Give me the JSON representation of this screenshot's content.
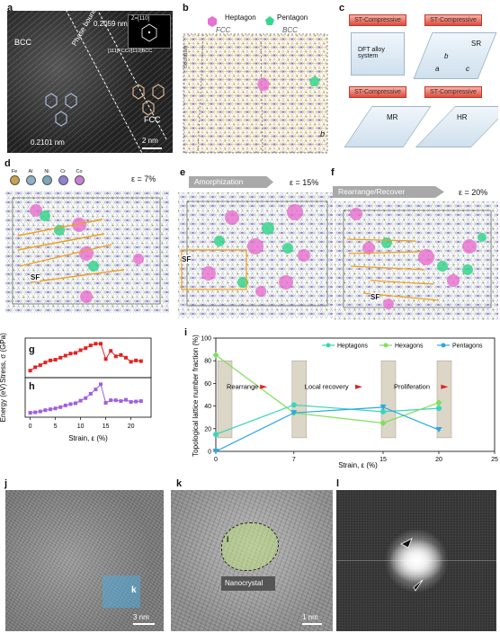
{
  "labels": {
    "a": "a",
    "b": "b",
    "c": "c",
    "d": "d",
    "e": "e",
    "f": "f",
    "g": "g",
    "h": "h",
    "i": "i",
    "j": "j",
    "k": "k",
    "l": "l"
  },
  "panel_a": {
    "bcc": "BCC",
    "fcc": "FCC",
    "phase_boundary": "Phase boundary",
    "d1": "0.2059 nm",
    "d2": "0.2101 nm",
    "inset_zone": "Z=[110]",
    "inset_index": "[111]FCC//[110]BCC",
    "scale": "2 nm"
  },
  "panel_b": {
    "heptagon": "Heptagon",
    "pentagon": "Pentagon",
    "fcc": "FCC",
    "bcc": "BCC",
    "boundary": "Boundary",
    "b_marker": "b"
  },
  "panel_c": {
    "st": "ST-Compressive",
    "dft": "DFT alloy system",
    "sr": "SR",
    "mr": "MR",
    "hr": "HR",
    "axis_b": "b",
    "axis_a": "a",
    "axis_c": "c"
  },
  "panel_d": {
    "elements": [
      "Fe",
      "Al",
      "Ni",
      "Cr",
      "Co"
    ],
    "element_colors": [
      "#c8a24a",
      "#8fb0c8",
      "#7aa6b8",
      "#8f7fd6",
      "#c97fd2"
    ],
    "strain": "ε = 7%",
    "sf": "SF"
  },
  "panel_e": {
    "banner": "Amorphization",
    "strain": "ε = 15%",
    "sf": "SF"
  },
  "panel_f": {
    "banner": "Rearrange/Recover",
    "strain": "ε = 20%",
    "sf": "SF"
  },
  "panel_gh": {
    "ylabel_g": "Stress, σ (GPa)",
    "ylabel_h": "Energy (eV)",
    "xlabel": "Strain, ε (%)",
    "xticks": [
      "0",
      "5",
      "10",
      "15",
      "20"
    ]
  },
  "chart_data": [
    {
      "type": "line",
      "title": "g",
      "ylabel": "Stress, σ (GPa)",
      "xlabel": "Strain, ε (%)",
      "xlim": [
        -1,
        24
      ],
      "series": [
        {
          "name": "Stress",
          "color": "#e32222",
          "x": [
            0,
            1,
            2,
            3,
            4,
            5,
            6,
            7,
            8,
            9,
            10,
            11,
            12,
            13,
            14,
            15,
            16,
            17,
            18,
            19,
            20,
            21,
            22
          ],
          "values": [
            1.0,
            2.0,
            2.6,
            3.4,
            4.0,
            4.2,
            4.8,
            5.4,
            6.0,
            6.2,
            7.0,
            7.6,
            8.4,
            8.9,
            8.9,
            4.4,
            6.8,
            5.2,
            5.6,
            4.8,
            3.6,
            4.0,
            3.8
          ]
        }
      ]
    },
    {
      "type": "line",
      "title": "h",
      "ylabel": "Energy (eV)",
      "xlabel": "Strain, ε (%)",
      "xlim": [
        -1,
        24
      ],
      "series": [
        {
          "name": "Energy",
          "color": "#9f5fe0",
          "x": [
            0,
            1,
            2,
            3,
            4,
            5,
            6,
            7,
            8,
            9,
            10,
            11,
            12,
            13,
            14,
            15,
            16,
            17,
            18,
            19,
            20,
            21,
            22
          ],
          "values": [
            0.2,
            0.3,
            0.5,
            0.8,
            1.0,
            1.2,
            1.5,
            1.9,
            2.2,
            2.4,
            3.0,
            3.6,
            4.6,
            5.6,
            6.8,
            2.5,
            3.1,
            3.1,
            2.9,
            3.2,
            2.7,
            2.8,
            2.9
          ]
        }
      ]
    },
    {
      "type": "line",
      "title": "i",
      "ylabel": "Topological lattice number fraction (%)",
      "xlabel": "Strain, ε (%)",
      "xlim": [
        0,
        25
      ],
      "ylim": [
        0,
        100
      ],
      "xticks": [
        0,
        7,
        15,
        20,
        25
      ],
      "yticks": [
        0,
        20,
        40,
        60,
        80,
        100
      ],
      "series": [
        {
          "name": "Heptagons",
          "color": "#3ad6b8",
          "marker": "circle",
          "x": [
            0,
            7,
            15,
            20
          ],
          "values": [
            15,
            41,
            35,
            38
          ]
        },
        {
          "name": "Hexagons",
          "color": "#7de05a",
          "marker": "diamond",
          "x": [
            0,
            7,
            15,
            20
          ],
          "values": [
            85,
            34,
            25,
            43
          ]
        },
        {
          "name": "Pentagons",
          "color": "#2aa8e6",
          "marker": "triangle",
          "x": [
            0,
            7,
            15,
            20
          ],
          "values": [
            0,
            34,
            39,
            19
          ]
        }
      ],
      "annotations": [
        "Rearrange",
        "Local recovery",
        "Proliferation"
      ]
    }
  ],
  "panel_j": {
    "k_label": "k",
    "scale": "3 nm"
  },
  "panel_k": {
    "i_label": "I",
    "nanocrystal": "Nanocrystal",
    "scale": "1 nm"
  }
}
